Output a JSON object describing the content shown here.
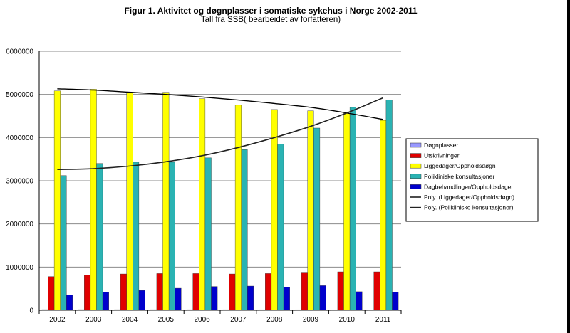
{
  "chart_data": {
    "type": "bar",
    "title": "Figur 1. Aktivitet og døgnplasser i somatiske sykehus i Norge 2002-2011",
    "subtitle": "Tall fra SSB( bearbeidet av forfatteren)",
    "categories": [
      "2002",
      "2003",
      "2004",
      "2005",
      "2006",
      "2007",
      "2008",
      "2009",
      "2010",
      "2011"
    ],
    "ylim": [
      0,
      6000000
    ],
    "y_ticks": [
      "0",
      "1000000",
      "2000000",
      "3000000",
      "4000000",
      "5000000",
      "6000000"
    ],
    "grid": true,
    "legend_position": "right",
    "series": [
      {
        "name": "Døgnplasser",
        "color": "#9999ff",
        "values": [
          15000,
          14800,
          14500,
          14300,
          14000,
          13800,
          13600,
          13400,
          13200,
          13000
        ]
      },
      {
        "name": "Utskrivninger",
        "color": "#e00000",
        "values": [
          780000,
          820000,
          840000,
          850000,
          850000,
          840000,
          850000,
          880000,
          890000,
          890000
        ]
      },
      {
        "name": "Liggedager/Oppholdsdøgn",
        "color": "#ffff00",
        "values": [
          5080000,
          5120000,
          5050000,
          5050000,
          4900000,
          4750000,
          4650000,
          4620000,
          4560000,
          4400000
        ]
      },
      {
        "name": "Polikliniske konsultasjoner",
        "color": "#2ab3b3",
        "values": [
          3120000,
          3400000,
          3430000,
          3430000,
          3530000,
          3720000,
          3850000,
          4220000,
          4700000,
          4870000
        ]
      },
      {
        "name": "Dagbehandlinger/Oppholdsdager",
        "color": "#0000cc",
        "values": [
          350000,
          420000,
          460000,
          510000,
          550000,
          560000,
          540000,
          570000,
          430000,
          420000
        ]
      }
    ],
    "trendlines": [
      {
        "name": "Poly. (Liggedager/Oppholdsdøgn)",
        "values": [
          5130000,
          5100000,
          5050000,
          5000000,
          4940000,
          4870000,
          4790000,
          4700000,
          4570000,
          4420000
        ]
      },
      {
        "name": "Poly. (Polikliniske konsultasjoner)",
        "values": [
          3260000,
          3280000,
          3340000,
          3440000,
          3580000,
          3770000,
          4000000,
          4260000,
          4570000,
          4920000
        ]
      }
    ]
  }
}
